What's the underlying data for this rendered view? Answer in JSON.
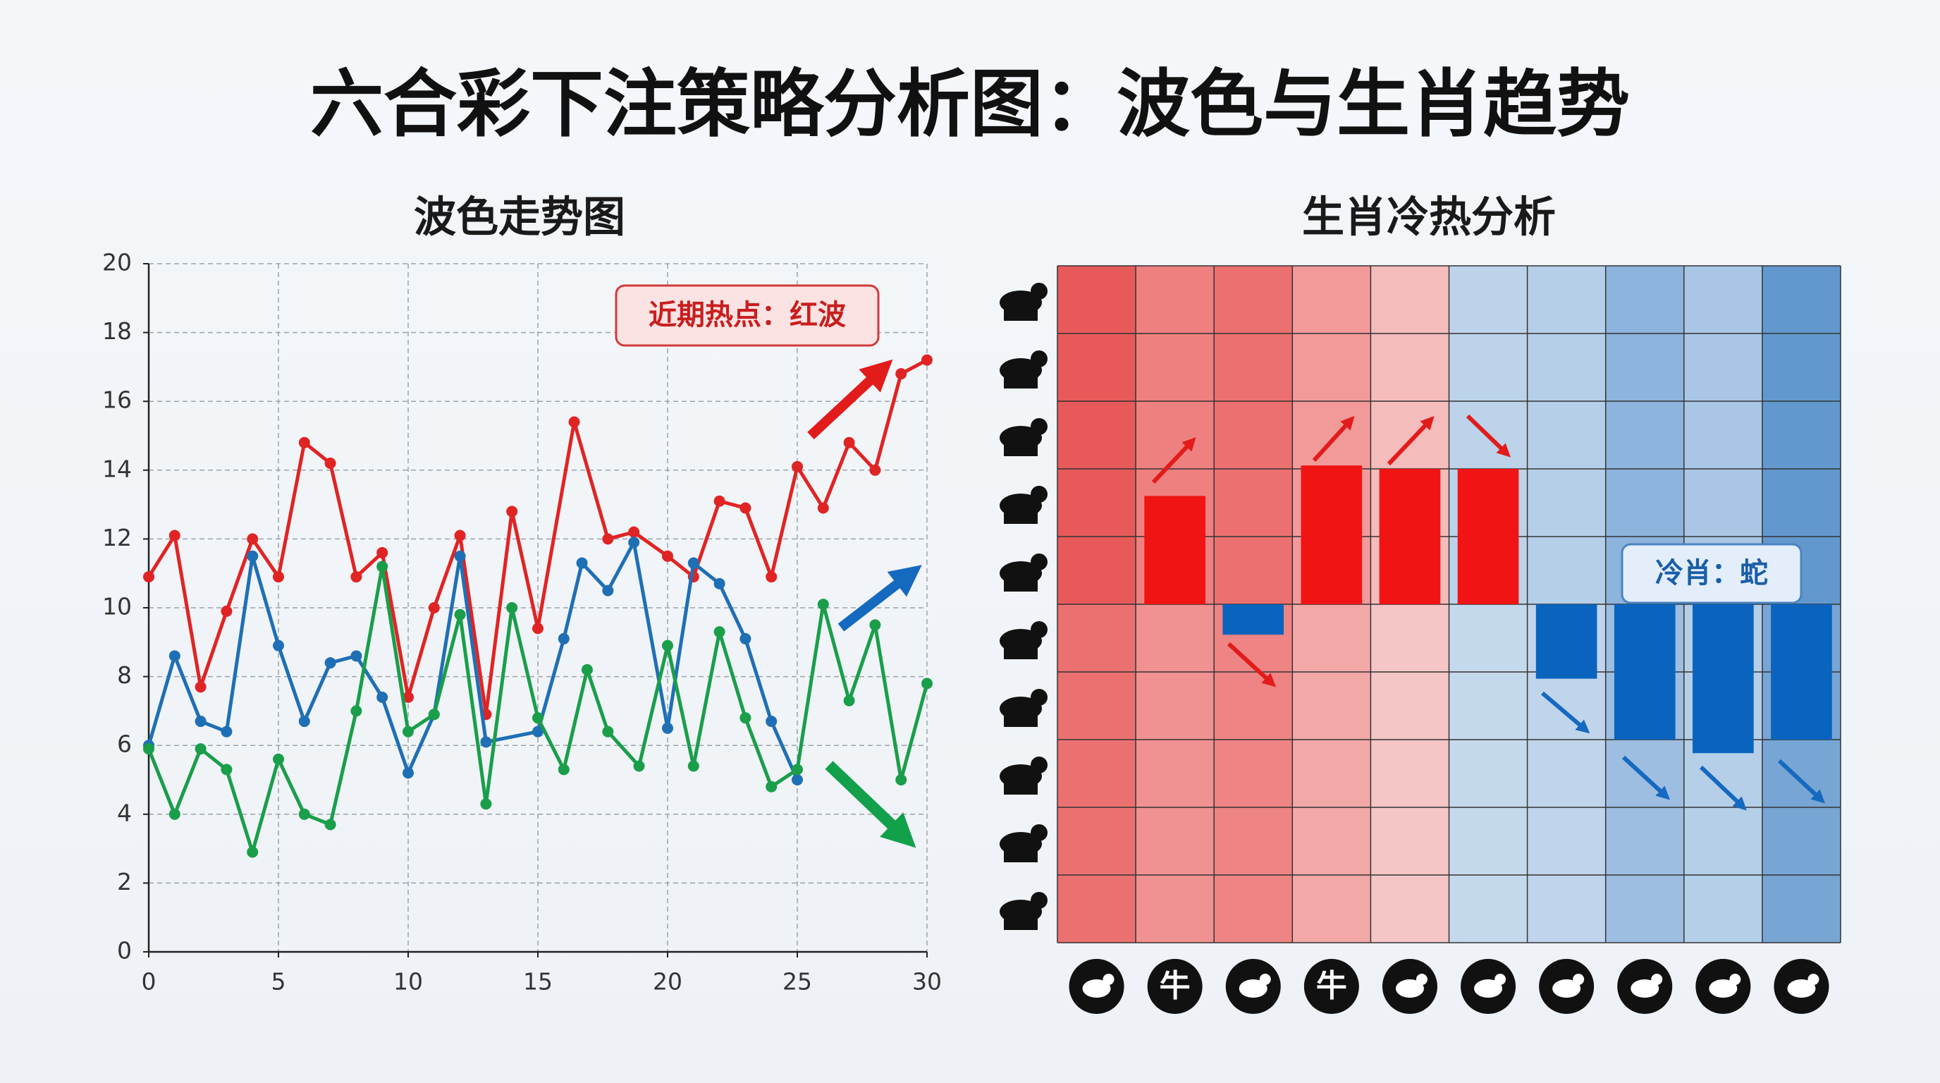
{
  "title": "六合彩下注策略分析图：波色与生肖趋势",
  "chart_data": [
    {
      "type": "line",
      "title": "波色走势图",
      "annotation": "近期热点：红波",
      "xlim": [
        0,
        30
      ],
      "xticks": [
        0,
        5,
        10,
        15,
        20,
        25,
        30
      ],
      "ylim": [
        0,
        20
      ],
      "yticks": [
        0,
        2,
        4,
        6,
        8,
        10,
        12,
        14,
        16,
        18,
        20
      ],
      "grid": true,
      "series": [
        {
          "color": "#e02424",
          "x": [
            0,
            1,
            2,
            3,
            4,
            5,
            6,
            7,
            8,
            9,
            10,
            11,
            12,
            13,
            14,
            15,
            16.4,
            17.7,
            18.7,
            20,
            21,
            22,
            23,
            24,
            25,
            26,
            27,
            28,
            29,
            30
          ],
          "values": [
            10.9,
            12.1,
            7.7,
            9.9,
            12.0,
            10.9,
            14.8,
            14.2,
            10.9,
            11.6,
            7.4,
            10.0,
            12.1,
            6.9,
            12.8,
            9.4,
            15.4,
            12.0,
            12.2,
            11.5,
            10.9,
            13.1,
            12.9,
            10.9,
            14.1,
            12.9,
            14.8,
            14.0,
            16.8,
            17.2
          ]
        },
        {
          "color": "#1f6fb5",
          "x": [
            0,
            1,
            2,
            3,
            4,
            5,
            6,
            7,
            8,
            9,
            10,
            11,
            12,
            13,
            15,
            16,
            16.7,
            17.7,
            18.7,
            20,
            21,
            22,
            23,
            24,
            25
          ],
          "values": [
            6.0,
            8.6,
            6.7,
            6.4,
            11.5,
            8.9,
            6.7,
            8.4,
            8.6,
            7.4,
            5.2,
            6.9,
            11.5,
            6.1,
            6.4,
            9.1,
            11.3,
            10.5,
            11.9,
            6.5,
            11.3,
            10.7,
            9.1,
            6.7,
            5.0
          ]
        },
        {
          "color": "#1a9e4a",
          "x": [
            0,
            1,
            2,
            3,
            4,
            5,
            6,
            7,
            8,
            9,
            10,
            11,
            12,
            13,
            14,
            15,
            16,
            16.9,
            17.7,
            18.9,
            20,
            21,
            22,
            23,
            24,
            25,
            26,
            27,
            28,
            29,
            30
          ],
          "values": [
            5.9,
            4.0,
            5.9,
            5.3,
            2.9,
            5.6,
            4.0,
            3.7,
            7.0,
            11.2,
            6.4,
            6.9,
            9.8,
            4.3,
            10.0,
            6.8,
            5.3,
            8.2,
            6.4,
            5.4,
            8.9,
            5.4,
            9.3,
            6.8,
            4.8,
            5.3,
            10.1,
            7.3,
            9.5,
            5.0,
            7.8
          ]
        }
      ]
    },
    {
      "type": "diverging-bar",
      "title": "生肖冷热分析",
      "annotation": "冷肖：蛇",
      "categories": [
        null,
        "牛",
        null,
        "牛",
        null,
        null,
        null,
        null,
        null,
        null
      ],
      "values": [
        0,
        1.6,
        -0.45,
        2.05,
        2.0,
        2.0,
        -1.1,
        -2.0,
        -2.2,
        -2.0
      ],
      "positive_color": "#f01414",
      "negative_color": "#0a64bd",
      "column_colors": [
        "#e85a5a",
        "#ef8080",
        "#ec7070",
        "#f29a9a",
        "#f5bcbc",
        "#bcd3ea",
        "#b6cfe8",
        "#8db4dd",
        "#a9c7e5",
        "#6298cd"
      ]
    }
  ]
}
